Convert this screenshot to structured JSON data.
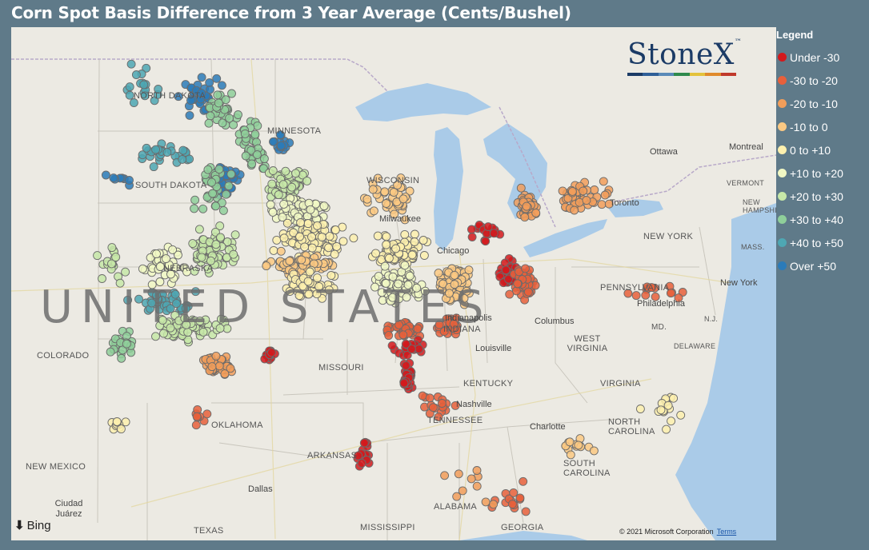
{
  "title": "Corn Spot Basis Difference from 3 Year Average (Cents/Bushel)",
  "legend": {
    "title": "Legend",
    "items": [
      {
        "label": "Under -30",
        "color": "#d3191c"
      },
      {
        "label": "-30 to -20",
        "color": "#e8603b"
      },
      {
        "label": "-20 to -10",
        "color": "#f29e5a"
      },
      {
        "label": "-10 to 0",
        "color": "#fbc983"
      },
      {
        "label": "0 to +10",
        "color": "#fdf0ae"
      },
      {
        "label": "+10 to +20",
        "color": "#f1f8c4"
      },
      {
        "label": "+20 to +30",
        "color": "#c7e8a8"
      },
      {
        "label": "+30 to +40",
        "color": "#8fcf9a"
      },
      {
        "label": "+40 to +50",
        "color": "#4ea7b3"
      },
      {
        "label": "Over +50",
        "color": "#2b7bb9"
      }
    ]
  },
  "logo": {
    "text": "StoneX",
    "tm": "™",
    "bar_colors": [
      "#1b3b66",
      "#2f5f98",
      "#5a8ab8",
      "#2f8a4c",
      "#e3c23b",
      "#e08a2b",
      "#c0392b"
    ]
  },
  "map": {
    "country_label": "UNITED STATES",
    "state_labels": [
      "NORTH DAKOTA",
      "SOUTH DAKOTA",
      "MINNESOTA",
      "WISCONSIN",
      "NEBRASKA",
      "COLORADO",
      "MISSOURI",
      "INDIANA",
      "KENTUCKY",
      "TENNESSEE",
      "OKLAHOMA",
      "ARKANSAS",
      "NEW MEXICO",
      "TEXAS",
      "MISSISSIPPI",
      "ALABAMA",
      "GEORGIA",
      "SOUTH CAROLINA",
      "NORTH CAROLINA",
      "VIRGINIA",
      "WEST VIRGINIA",
      "PENNSYLVANIA",
      "NEW YORK",
      "VERMONT",
      "NEW HAMPSHIRE",
      "MASS.",
      "N.J.",
      "MD.",
      "DELAWARE"
    ],
    "city_labels": [
      "Ottawa",
      "Montreal",
      "Chicago",
      "Milwaukee",
      "Toronto",
      "Columbus",
      "Louisville",
      "Nashville",
      "Charlotte",
      "Philadelphia",
      "New York",
      "Dallas",
      "Ciudad Juárez",
      "Indianapolis"
    ],
    "attribution": {
      "provider": "Bing",
      "copyright": "© 2021 Microsoft Corporation",
      "terms": "Terms"
    }
  },
  "clusters": [
    {
      "name": "nd-east",
      "legend_index": 9,
      "lat": 47.5,
      "lon": -98.0,
      "spread": [
        1.1,
        1.2
      ],
      "count": 32
    },
    {
      "name": "nd-east-green",
      "legend_index": 7,
      "lat": 47.0,
      "lon": -97.0,
      "spread": [
        1.0,
        1.0
      ],
      "count": 35
    },
    {
      "name": "nd-west",
      "legend_index": 8,
      "lat": 47.8,
      "lon": -100.5,
      "spread": [
        1.0,
        1.5
      ],
      "count": 18
    },
    {
      "name": "sd-north",
      "legend_index": 8,
      "lat": 45.2,
      "lon": -99.5,
      "spread": [
        0.8,
        1.5
      ],
      "count": 30
    },
    {
      "name": "sd-east",
      "legend_index": 9,
      "lat": 44.2,
      "lon": -96.8,
      "spread": [
        0.8,
        0.8
      ],
      "count": 30
    },
    {
      "name": "sd-east-green",
      "legend_index": 7,
      "lat": 44.0,
      "lon": -97.5,
      "spread": [
        1.2,
        1.2
      ],
      "count": 35
    },
    {
      "name": "sd-west",
      "legend_index": 9,
      "lat": 44.4,
      "lon": -101.5,
      "spread": [
        0.6,
        1.2
      ],
      "count": 8
    },
    {
      "name": "mn-west",
      "legend_index": 7,
      "lat": 45.5,
      "lon": -95.5,
      "spread": [
        1.2,
        1.0
      ],
      "count": 45
    },
    {
      "name": "mn-south",
      "legend_index": 6,
      "lat": 44.0,
      "lon": -94.0,
      "spread": [
        0.8,
        1.4
      ],
      "count": 55
    },
    {
      "name": "mn-east-blue",
      "legend_index": 9,
      "lat": 45.6,
      "lon": -94.2,
      "spread": [
        0.5,
        0.8
      ],
      "count": 14
    },
    {
      "name": "ia-north",
      "legend_index": 5,
      "lat": 43.0,
      "lon": -93.5,
      "spread": [
        0.8,
        2.0
      ],
      "count": 70
    },
    {
      "name": "ia-central",
      "legend_index": 4,
      "lat": 42.0,
      "lon": -93.0,
      "spread": [
        0.9,
        2.2
      ],
      "count": 90
    },
    {
      "name": "ia-south",
      "legend_index": 3,
      "lat": 41.0,
      "lon": -93.5,
      "spread": [
        0.6,
        2.0
      ],
      "count": 60
    },
    {
      "name": "ne-east",
      "legend_index": 6,
      "lat": 41.5,
      "lon": -97.5,
      "spread": [
        1.0,
        1.5
      ],
      "count": 70
    },
    {
      "name": "ne-central",
      "legend_index": 5,
      "lat": 41.0,
      "lon": -99.5,
      "spread": [
        1.0,
        1.5
      ],
      "count": 40
    },
    {
      "name": "ne-west",
      "legend_index": 6,
      "lat": 41.0,
      "lon": -102.0,
      "spread": [
        1.0,
        1.0
      ],
      "count": 18
    },
    {
      "name": "ks-north",
      "legend_index": 8,
      "lat": 39.6,
      "lon": -99.5,
      "spread": [
        0.6,
        2.2
      ],
      "count": 45
    },
    {
      "name": "ks-central",
      "legend_index": 6,
      "lat": 38.6,
      "lon": -98.5,
      "spread": [
        0.8,
        2.0
      ],
      "count": 70
    },
    {
      "name": "ks-south",
      "legend_index": 2,
      "lat": 37.2,
      "lon": -97.2,
      "spread": [
        0.5,
        0.9
      ],
      "count": 50
    },
    {
      "name": "ks-west",
      "legend_index": 7,
      "lat": 38.0,
      "lon": -101.5,
      "spread": [
        0.8,
        0.8
      ],
      "count": 25
    },
    {
      "name": "mo-north",
      "legend_index": 4,
      "lat": 40.2,
      "lon": -93.0,
      "spread": [
        0.7,
        1.6
      ],
      "count": 50
    },
    {
      "name": "mo-west",
      "legend_index": 0,
      "lat": 37.5,
      "lon": -94.8,
      "spread": [
        0.3,
        0.5
      ],
      "count": 12
    },
    {
      "name": "il-north",
      "legend_index": 4,
      "lat": 41.5,
      "lon": -89.0,
      "spread": [
        0.8,
        1.5
      ],
      "count": 90
    },
    {
      "name": "il-central",
      "legend_index": 5,
      "lat": 40.2,
      "lon": -89.0,
      "spread": [
        0.9,
        1.5
      ],
      "count": 80
    },
    {
      "name": "il-south",
      "legend_index": 1,
      "lat": 38.5,
      "lon": -88.8,
      "spread": [
        0.5,
        1.0
      ],
      "count": 45
    },
    {
      "name": "il-far-south",
      "legend_index": 0,
      "lat": 37.8,
      "lon": -88.5,
      "spread": [
        0.4,
        1.0
      ],
      "count": 25
    },
    {
      "name": "wi-south",
      "legend_index": 3,
      "lat": 43.5,
      "lon": -89.5,
      "spread": [
        1.0,
        1.5
      ],
      "count": 45
    },
    {
      "name": "in",
      "legend_index": 3,
      "lat": 40.2,
      "lon": -86.5,
      "spread": [
        1.0,
        1.1
      ],
      "count": 80
    },
    {
      "name": "in-south",
      "legend_index": 1,
      "lat": 38.6,
      "lon": -86.8,
      "spread": [
        0.5,
        1.0
      ],
      "count": 30
    },
    {
      "name": "oh-west",
      "legend_index": 0,
      "lat": 40.6,
      "lon": -84.0,
      "spread": [
        0.8,
        0.7
      ],
      "count": 50
    },
    {
      "name": "oh-red",
      "legend_index": 1,
      "lat": 40.3,
      "lon": -83.4,
      "spread": [
        0.9,
        0.7
      ],
      "count": 50
    },
    {
      "name": "mi-south",
      "legend_index": 0,
      "lat": 42.2,
      "lon": -85.0,
      "spread": [
        0.5,
        1.1
      ],
      "count": 20
    },
    {
      "name": "mi-thumb",
      "legend_index": 2,
      "lat": 43.3,
      "lon": -83.2,
      "spread": [
        0.7,
        0.6
      ],
      "count": 45
    },
    {
      "name": "ontario",
      "legend_index": 2,
      "lat": 43.6,
      "lon": -80.8,
      "spread": [
        0.7,
        1.6
      ],
      "count": 45
    },
    {
      "name": "ky-west",
      "legend_index": 0,
      "lat": 36.7,
      "lon": -88.6,
      "spread": [
        0.7,
        0.4
      ],
      "count": 30
    },
    {
      "name": "tn-west",
      "legend_index": 1,
      "lat": 35.7,
      "lon": -87.2,
      "spread": [
        0.6,
        1.2
      ],
      "count": 18
    },
    {
      "name": "pa",
      "legend_index": 1,
      "lat": 40.0,
      "lon": -77.5,
      "spread": [
        0.5,
        2.0
      ],
      "count": 14
    },
    {
      "name": "nc",
      "legend_index": 4,
      "lat": 35.5,
      "lon": -77.0,
      "spread": [
        0.8,
        1.2
      ],
      "count": 18
    },
    {
      "name": "ms-delta",
      "legend_index": 0,
      "lat": 33.8,
      "lon": -90.6,
      "spread": [
        1.0,
        0.5
      ],
      "count": 16
    },
    {
      "name": "ok-red",
      "legend_index": 1,
      "lat": 35.2,
      "lon": -98.0,
      "spread": [
        0.5,
        0.5
      ],
      "count": 8
    },
    {
      "name": "tx-north",
      "legend_index": 4,
      "lat": 35.0,
      "lon": -101.5,
      "spread": [
        0.5,
        0.8
      ],
      "count": 10
    },
    {
      "name": "ga-south",
      "legend_index": 1,
      "lat": 32.0,
      "lon": -84.0,
      "spread": [
        1.0,
        2.0
      ],
      "count": 14
    },
    {
      "name": "ga-orange",
      "legend_index": 2,
      "lat": 32.5,
      "lon": -86.0,
      "spread": [
        1.0,
        2.0
      ],
      "count": 10
    },
    {
      "name": "sc",
      "legend_index": 3,
      "lat": 34.0,
      "lon": -81.0,
      "spread": [
        0.6,
        1.0
      ],
      "count": 14
    }
  ]
}
